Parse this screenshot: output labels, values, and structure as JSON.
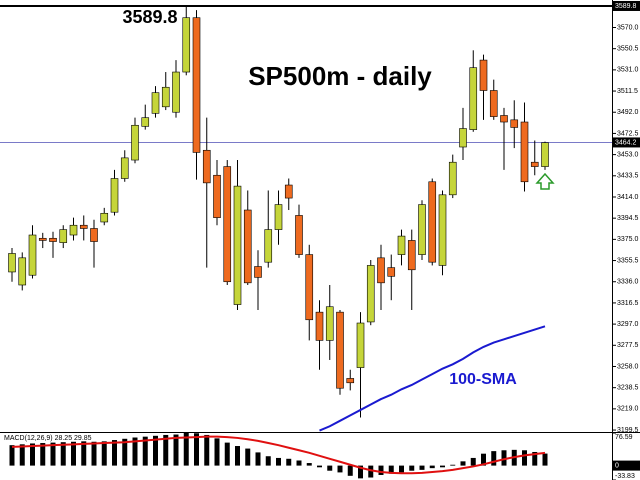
{
  "chart_data": [
    {
      "type": "candlestick",
      "title": "SP500m - daily",
      "annotations": [
        "3589.8"
      ],
      "up_color": "#c5d53a",
      "down_color": "#ee6a1f",
      "ohlc": {
        "open": [
          3345,
          3333,
          3342,
          3376,
          3376,
          3372,
          3379,
          3388,
          3385,
          3391,
          3400,
          3431,
          3448,
          3479,
          3491,
          3497,
          3492,
          3529,
          3579,
          3457,
          3434,
          3442,
          3315,
          3402,
          3350,
          3354,
          3384,
          3425,
          3397,
          3361,
          3308,
          3282,
          3308,
          3247,
          3257,
          3299,
          3358,
          3349,
          3361,
          3374,
          3361,
          3428,
          3351,
          3416,
          3460,
          3476,
          3540,
          3512,
          3489,
          3485,
          3483,
          3446,
          3442
        ],
        "high": [
          3367,
          3363,
          3388,
          3381,
          3382,
          3388,
          3395,
          3397,
          3393,
          3404,
          3439,
          3457,
          3487,
          3499,
          3516,
          3529,
          3540,
          3589.8,
          3586,
          3487,
          3448,
          3448,
          3448,
          3420,
          3365,
          3420,
          3420,
          3431,
          3407,
          3370,
          3319,
          3333,
          3310,
          3255,
          3308,
          3356,
          3370,
          3361,
          3384,
          3384,
          3411,
          3431,
          3420,
          3453,
          3496,
          3549,
          3545,
          3522,
          3496,
          3503,
          3501,
          3466,
          3465
        ],
        "low": [
          3336,
          3328,
          3339,
          3367,
          3358,
          3367,
          3374,
          3374,
          3349,
          3388,
          3397,
          3428,
          3445,
          3476,
          3487,
          3494,
          3487,
          3526,
          3430,
          3349,
          3388,
          3333,
          3310,
          3333,
          3310,
          3349,
          3370,
          3402,
          3358,
          3282,
          3255,
          3264,
          3232,
          3236,
          3211,
          3296,
          3310,
          3319,
          3351,
          3310,
          3356,
          3351,
          3342,
          3413,
          3448,
          3474,
          3485,
          3485,
          3439,
          3459,
          3419,
          3434,
          3439
        ],
        "close": [
          3362,
          3358,
          3379,
          3374,
          3373,
          3384,
          3388,
          3385,
          3373,
          3399,
          3431,
          3450,
          3480,
          3487,
          3510,
          3515,
          3529,
          3579,
          3455,
          3427,
          3395,
          3336,
          3424,
          3335,
          3340,
          3384,
          3407,
          3413,
          3361,
          3301,
          3282,
          3313,
          3238,
          3243,
          3298,
          3351,
          3335,
          3341,
          3378,
          3347,
          3407,
          3354,
          3416,
          3446,
          3477,
          3533,
          3512,
          3488,
          3483,
          3478,
          3428,
          3442,
          3464
        ]
      },
      "series": [
        {
          "name": "100-SMA",
          "color": "#1a1ad0",
          "values": [
            null,
            null,
            null,
            null,
            null,
            null,
            null,
            null,
            null,
            null,
            null,
            null,
            null,
            null,
            null,
            null,
            null,
            null,
            null,
            null,
            null,
            null,
            null,
            null,
            null,
            null,
            null,
            null,
            null,
            null,
            3199,
            3203,
            3208,
            3213,
            3218,
            3223,
            3228,
            3232,
            3237,
            3241,
            3246,
            3251,
            3256,
            3260,
            3265,
            3271,
            3276,
            3280,
            3283,
            3286,
            3289,
            3292,
            3295
          ]
        }
      ],
      "last_price": 3464.2,
      "last_price_color": "#7a7ac8",
      "ylim": [
        3197.7,
        3595.3
      ],
      "yticks": [
        3589.8,
        {
          "value": 3570,
          "label": "3570.0"
        },
        3550.5,
        {
          "value": 3531,
          "label": "3531.0"
        },
        3511.5,
        {
          "value": 3492,
          "label": "3492.0"
        },
        3472.5,
        {
          "value": 3453,
          "label": "3453.0"
        },
        3433.5,
        {
          "value": 3414,
          "label": "3414.0"
        },
        3394.5,
        {
          "value": 3375,
          "label": "3375.0"
        },
        3355.5,
        {
          "value": 3336,
          "label": "3336.0"
        },
        3316.5,
        {
          "value": 3297,
          "label": "3297.0"
        },
        3277.5,
        {
          "value": 3258,
          "label": "3258.0"
        },
        3238.5,
        {
          "value": 3219,
          "label": "3219.0"
        },
        3199.5
      ]
    },
    {
      "type": "macd",
      "label": "MACD(12,26,9) 28.25 29.85",
      "histogram": {
        "color": "#000000",
        "values": [
          48,
          50,
          52,
          53,
          54,
          55,
          56,
          57,
          56,
          57,
          60,
          63,
          66,
          68,
          70,
          72,
          73,
          78,
          76,
          72,
          64,
          54,
          46,
          40,
          31,
          22,
          18,
          16,
          12,
          6,
          -4,
          -12,
          -16,
          -24,
          -30,
          -28,
          -22,
          -19,
          -16,
          -12,
          -10,
          -6,
          -4,
          2,
          10,
          18,
          28,
          34,
          36,
          37,
          36,
          32,
          28.25
        ]
      },
      "signal": {
        "color": "#e01010",
        "values": [
          44,
          45,
          46,
          47,
          48,
          49,
          50,
          51,
          52,
          53,
          54,
          55,
          57,
          59,
          61,
          63,
          65,
          66,
          67,
          68,
          68,
          67,
          65,
          62,
          58,
          53,
          48,
          42,
          36,
          30,
          23,
          16,
          9,
          2,
          -5,
          -11,
          -15,
          -17,
          -18,
          -18,
          -17,
          -15,
          -13,
          -10,
          -6,
          -2,
          3,
          9,
          15,
          20,
          24,
          27,
          29.85
        ]
      },
      "ylim": [
        -33.83,
        76.59
      ],
      "yticks": [
        76.59,
        0,
        -33.83
      ]
    }
  ]
}
